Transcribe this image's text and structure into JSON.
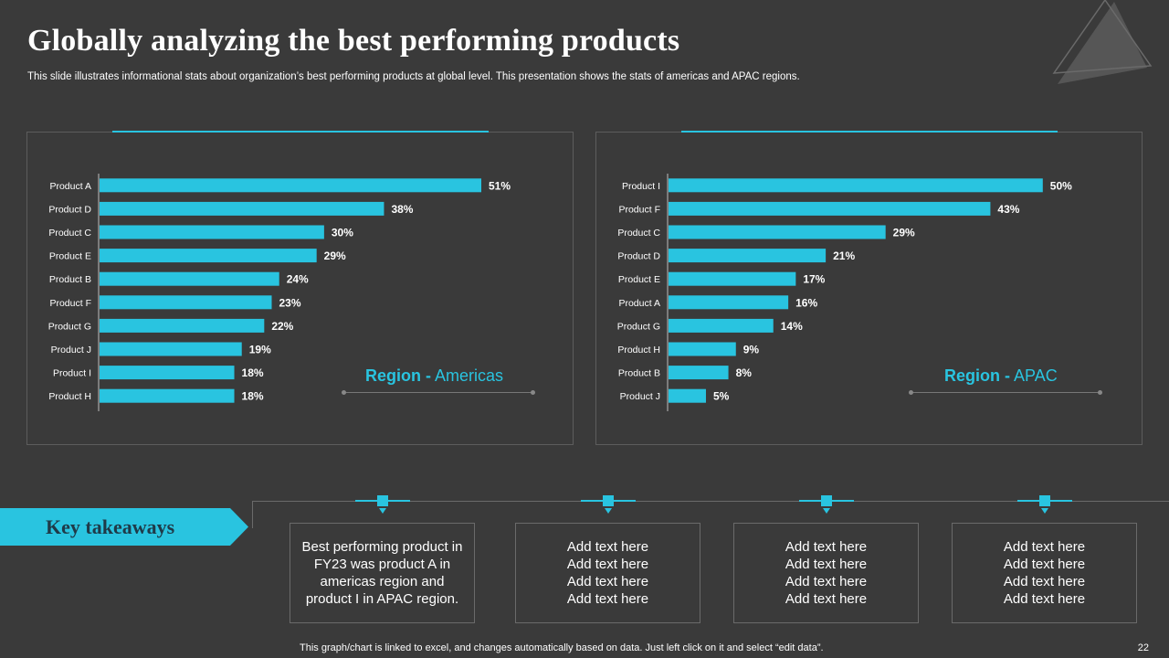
{
  "title": "Globally analyzing the best performing products",
  "subtitle": "This slide illustrates informational stats about organization’s best performing products at global level. This presentation shows the stats of americas and APAC regions.",
  "colors": {
    "background": "#3a3a3a",
    "accent": "#29c4e0",
    "border": "#5d5d5d"
  },
  "chart_data": [
    {
      "type": "bar",
      "orientation": "horizontal",
      "region_prefix": "Region -",
      "region_name": "Americas",
      "categories": [
        "Product A",
        "Product D",
        "Product C",
        "Product E",
        "Product B",
        "Product F",
        "Product G",
        "Product J",
        "Product I",
        "Product H"
      ],
      "values": [
        51,
        38,
        30,
        29,
        24,
        23,
        22,
        19,
        18,
        18
      ],
      "labels": [
        "51%",
        "38%",
        "30%",
        "29%",
        "24%",
        "23%",
        "22%",
        "19%",
        "18%",
        "18%"
      ],
      "unit": "%",
      "xlim": [
        0,
        55
      ],
      "grid": false
    },
    {
      "type": "bar",
      "orientation": "horizontal",
      "region_prefix": "Region -",
      "region_name": "APAC",
      "categories": [
        "Product I",
        "Product F",
        "Product C",
        "Product D",
        "Product E",
        "Product A",
        "Product G",
        "Product H",
        "Product B",
        "Product J"
      ],
      "values": [
        50,
        43,
        29,
        21,
        17,
        16,
        14,
        9,
        8,
        5
      ],
      "labels": [
        "50%",
        "43%",
        "29%",
        "21%",
        "17%",
        "16%",
        "14%",
        "9%",
        "8%",
        "5%"
      ],
      "unit": "%",
      "xlim": [
        0,
        55
      ],
      "grid": false
    }
  ],
  "takeaways": {
    "label": "Key takeaways",
    "cards": [
      {
        "lines": [
          "Best performing product in",
          "FY23 was product A in",
          "americas region and",
          "product I in APAC region."
        ]
      },
      {
        "lines": [
          "Add text here",
          "Add text here",
          "Add text here",
          "Add text here"
        ]
      },
      {
        "lines": [
          "Add text here",
          "Add text here",
          "Add text here",
          "Add text here"
        ]
      },
      {
        "lines": [
          "Add text here",
          "Add text here",
          "Add text here",
          "Add text here"
        ]
      }
    ]
  },
  "footer": {
    "note": "This graph/chart is linked to excel,  and changes automatically based on data. Just left click on it and select “edit data”.",
    "page_number": "22"
  }
}
